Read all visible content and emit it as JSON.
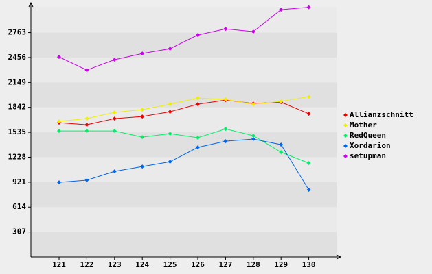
{
  "chart_data": {
    "type": "line",
    "categories": [
      "121",
      "122",
      "123",
      "124",
      "125",
      "126",
      "127",
      "128",
      "129",
      "130"
    ],
    "series": [
      {
        "name": "Allianzschnitt",
        "color": "#ee0000",
        "values": [
          1653,
          1628,
          1704,
          1729,
          1788,
          1881,
          1931,
          1889,
          1906,
          1763
        ]
      },
      {
        "name": "Mother",
        "color": "#eeee00",
        "values": [
          1670,
          1704,
          1780,
          1813,
          1881,
          1957,
          1940,
          1881,
          1915,
          1974
        ]
      },
      {
        "name": "RedQueen",
        "color": "#00ee66",
        "values": [
          1552,
          1552,
          1552,
          1476,
          1518,
          1468,
          1577,
          1493,
          1290,
          1155
        ]
      },
      {
        "name": "Xordarion",
        "color": "#0066ee",
        "values": [
          919,
          945,
          1054,
          1113,
          1172,
          1349,
          1425,
          1451,
          1383,
          827
        ]
      },
      {
        "name": "setupman",
        "color": "#cc00ee",
        "values": [
          2463,
          2302,
          2429,
          2505,
          2564,
          2733,
          2809,
          2775,
          3045,
          3075
        ]
      }
    ],
    "ylim": [
      0,
      3080
    ],
    "yticks": [
      307,
      614,
      921,
      1228,
      1535,
      1842,
      2149,
      2456,
      2763
    ],
    "grid": true,
    "legend": "right"
  }
}
